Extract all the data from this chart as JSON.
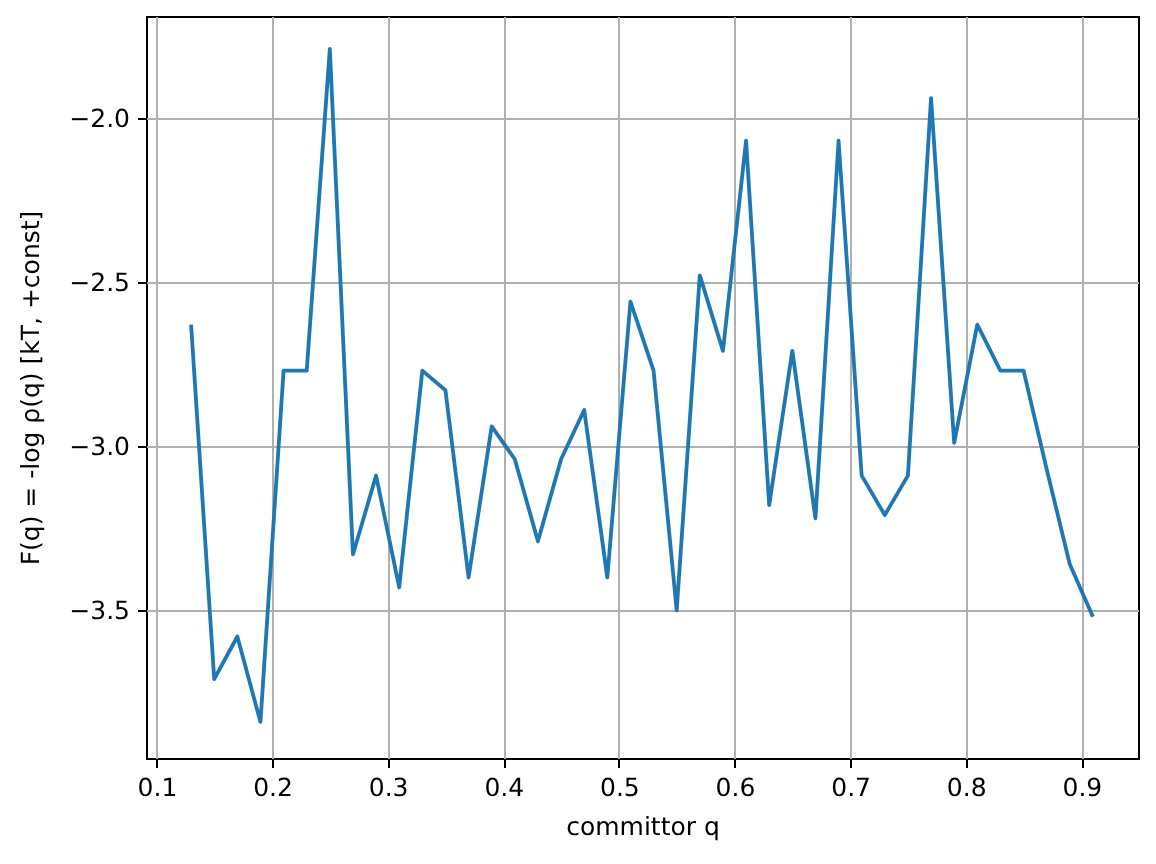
{
  "chart_data": {
    "type": "line",
    "xlabel": "committor q",
    "ylabel": "F(q) = -log ρ(q)  [kT, +const]",
    "x": [
      0.13,
      0.15,
      0.17,
      0.19,
      0.21,
      0.23,
      0.25,
      0.27,
      0.29,
      0.31,
      0.33,
      0.35,
      0.37,
      0.39,
      0.41,
      0.43,
      0.45,
      0.47,
      0.49,
      0.51,
      0.53,
      0.55,
      0.57,
      0.59,
      0.61,
      0.63,
      0.65,
      0.67,
      0.69,
      0.71,
      0.73,
      0.75,
      0.77,
      0.79,
      0.81,
      0.83,
      0.85,
      0.87,
      0.89,
      0.91
    ],
    "series": [
      {
        "color": "#1f77b4",
        "values": [
          -2.63,
          -3.71,
          -3.58,
          -3.84,
          -2.77,
          -2.77,
          -1.79,
          -3.33,
          -3.09,
          -3.43,
          -2.77,
          -2.83,
          -3.4,
          -2.94,
          -3.04,
          -3.29,
          -3.04,
          -2.89,
          -3.4,
          -2.56,
          -2.77,
          -3.5,
          -2.48,
          -2.71,
          -2.07,
          -3.18,
          -2.71,
          -3.22,
          -2.07,
          -3.09,
          -3.21,
          -3.09,
          -1.94,
          -2.99,
          -2.63,
          -2.77,
          -2.77,
          -3.07,
          -3.36,
          -3.52
        ]
      }
    ],
    "xlim": [
      0.091,
      0.949
    ],
    "ylim": [
      -3.95,
      -1.69
    ],
    "xticks": [
      0.1,
      0.2,
      0.3,
      0.4,
      0.5,
      0.6,
      0.7,
      0.8,
      0.9
    ],
    "yticks": [
      {
        "value": -3.5,
        "label": "−3.5"
      },
      {
        "value": -3.0,
        "label": "−3.0"
      },
      {
        "value": -2.5,
        "label": "−2.5"
      },
      {
        "value": -2.0,
        "label": "−2.0"
      }
    ],
    "grid": true
  }
}
